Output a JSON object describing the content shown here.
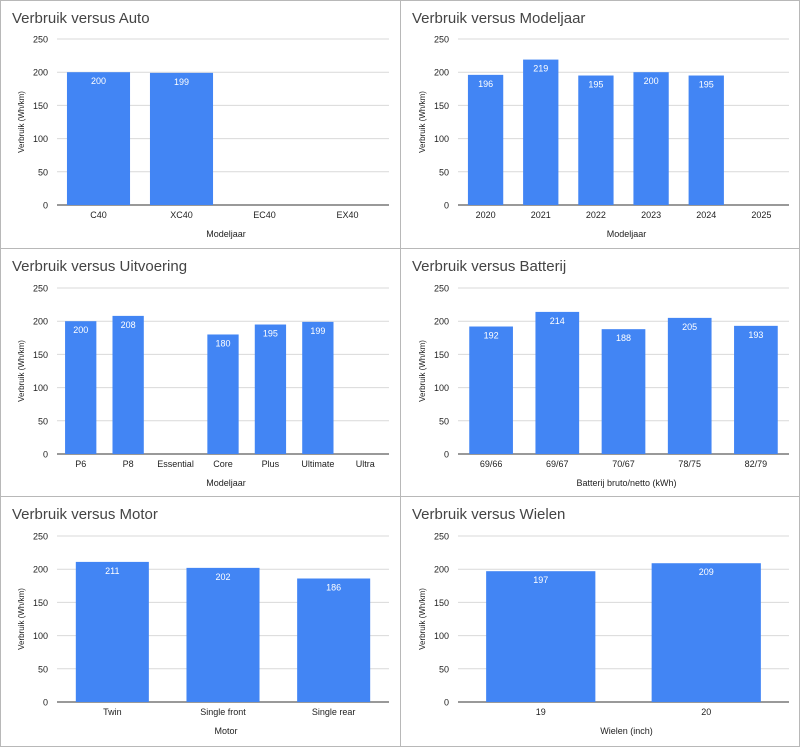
{
  "colors": {
    "bar": "#4285f4",
    "grid": "#d9d9d9",
    "axis": "#333333",
    "label": "#ffffff",
    "text": "#222222"
  },
  "chart_data": [
    {
      "type": "bar",
      "title": "Verbruik versus Auto",
      "categories": [
        "C40",
        "XC40",
        "EC40",
        "EX40"
      ],
      "values": [
        200,
        199,
        null,
        null
      ],
      "xlabel": "Modeljaar",
      "ylabel": "Verbruik (Wh/km)",
      "ylim": [
        0,
        250
      ],
      "yticks": [
        0,
        50,
        100,
        150,
        200,
        250
      ],
      "grid": true
    },
    {
      "type": "bar",
      "title": "Verbruik versus Modeljaar",
      "categories": [
        "2020",
        "2021",
        "2022",
        "2023",
        "2024",
        "2025"
      ],
      "values": [
        196,
        219,
        195,
        200,
        195,
        null
      ],
      "xlabel": "Modeljaar",
      "ylabel": "Verbruik (Wh/km)",
      "ylim": [
        0,
        250
      ],
      "yticks": [
        0,
        50,
        100,
        150,
        200,
        250
      ],
      "grid": true
    },
    {
      "type": "bar",
      "title": "Verbruik versus Uitvoering",
      "categories": [
        "P6",
        "P8",
        "Essential",
        "Core",
        "Plus",
        "Ultimate",
        "Ultra"
      ],
      "values": [
        200,
        208,
        null,
        180,
        195,
        199,
        null
      ],
      "xlabel": "Modeljaar",
      "ylabel": "Verbruik (Wh/km)",
      "ylim": [
        0,
        250
      ],
      "yticks": [
        0,
        50,
        100,
        150,
        200,
        250
      ],
      "grid": true
    },
    {
      "type": "bar",
      "title": "Verbruik versus Batterij",
      "categories": [
        "69/66",
        "69/67",
        "70/67",
        "78/75",
        "82/79"
      ],
      "values": [
        192,
        214,
        188,
        205,
        193
      ],
      "xlabel": "Batterij bruto/netto (kWh)",
      "ylabel": "Verbruik (Wh/km)",
      "ylim": [
        0,
        250
      ],
      "yticks": [
        0,
        50,
        100,
        150,
        200,
        250
      ],
      "grid": true
    },
    {
      "type": "bar",
      "title": "Verbruik versus Motor",
      "categories": [
        "Twin",
        "Single front",
        "Single rear"
      ],
      "values": [
        211,
        202,
        186
      ],
      "xlabel": "Motor",
      "ylabel": "Verbruik (Wh/km)",
      "ylim": [
        0,
        250
      ],
      "yticks": [
        0,
        50,
        100,
        150,
        200,
        250
      ],
      "grid": true
    },
    {
      "type": "bar",
      "title": "Verbruik versus Wielen",
      "categories": [
        "19",
        "20"
      ],
      "values": [
        197,
        209
      ],
      "xlabel": "Wielen (inch)",
      "ylabel": "Verbruik (Wh/km)",
      "ylim": [
        0,
        250
      ],
      "yticks": [
        0,
        50,
        100,
        150,
        200,
        250
      ],
      "grid": true
    }
  ]
}
